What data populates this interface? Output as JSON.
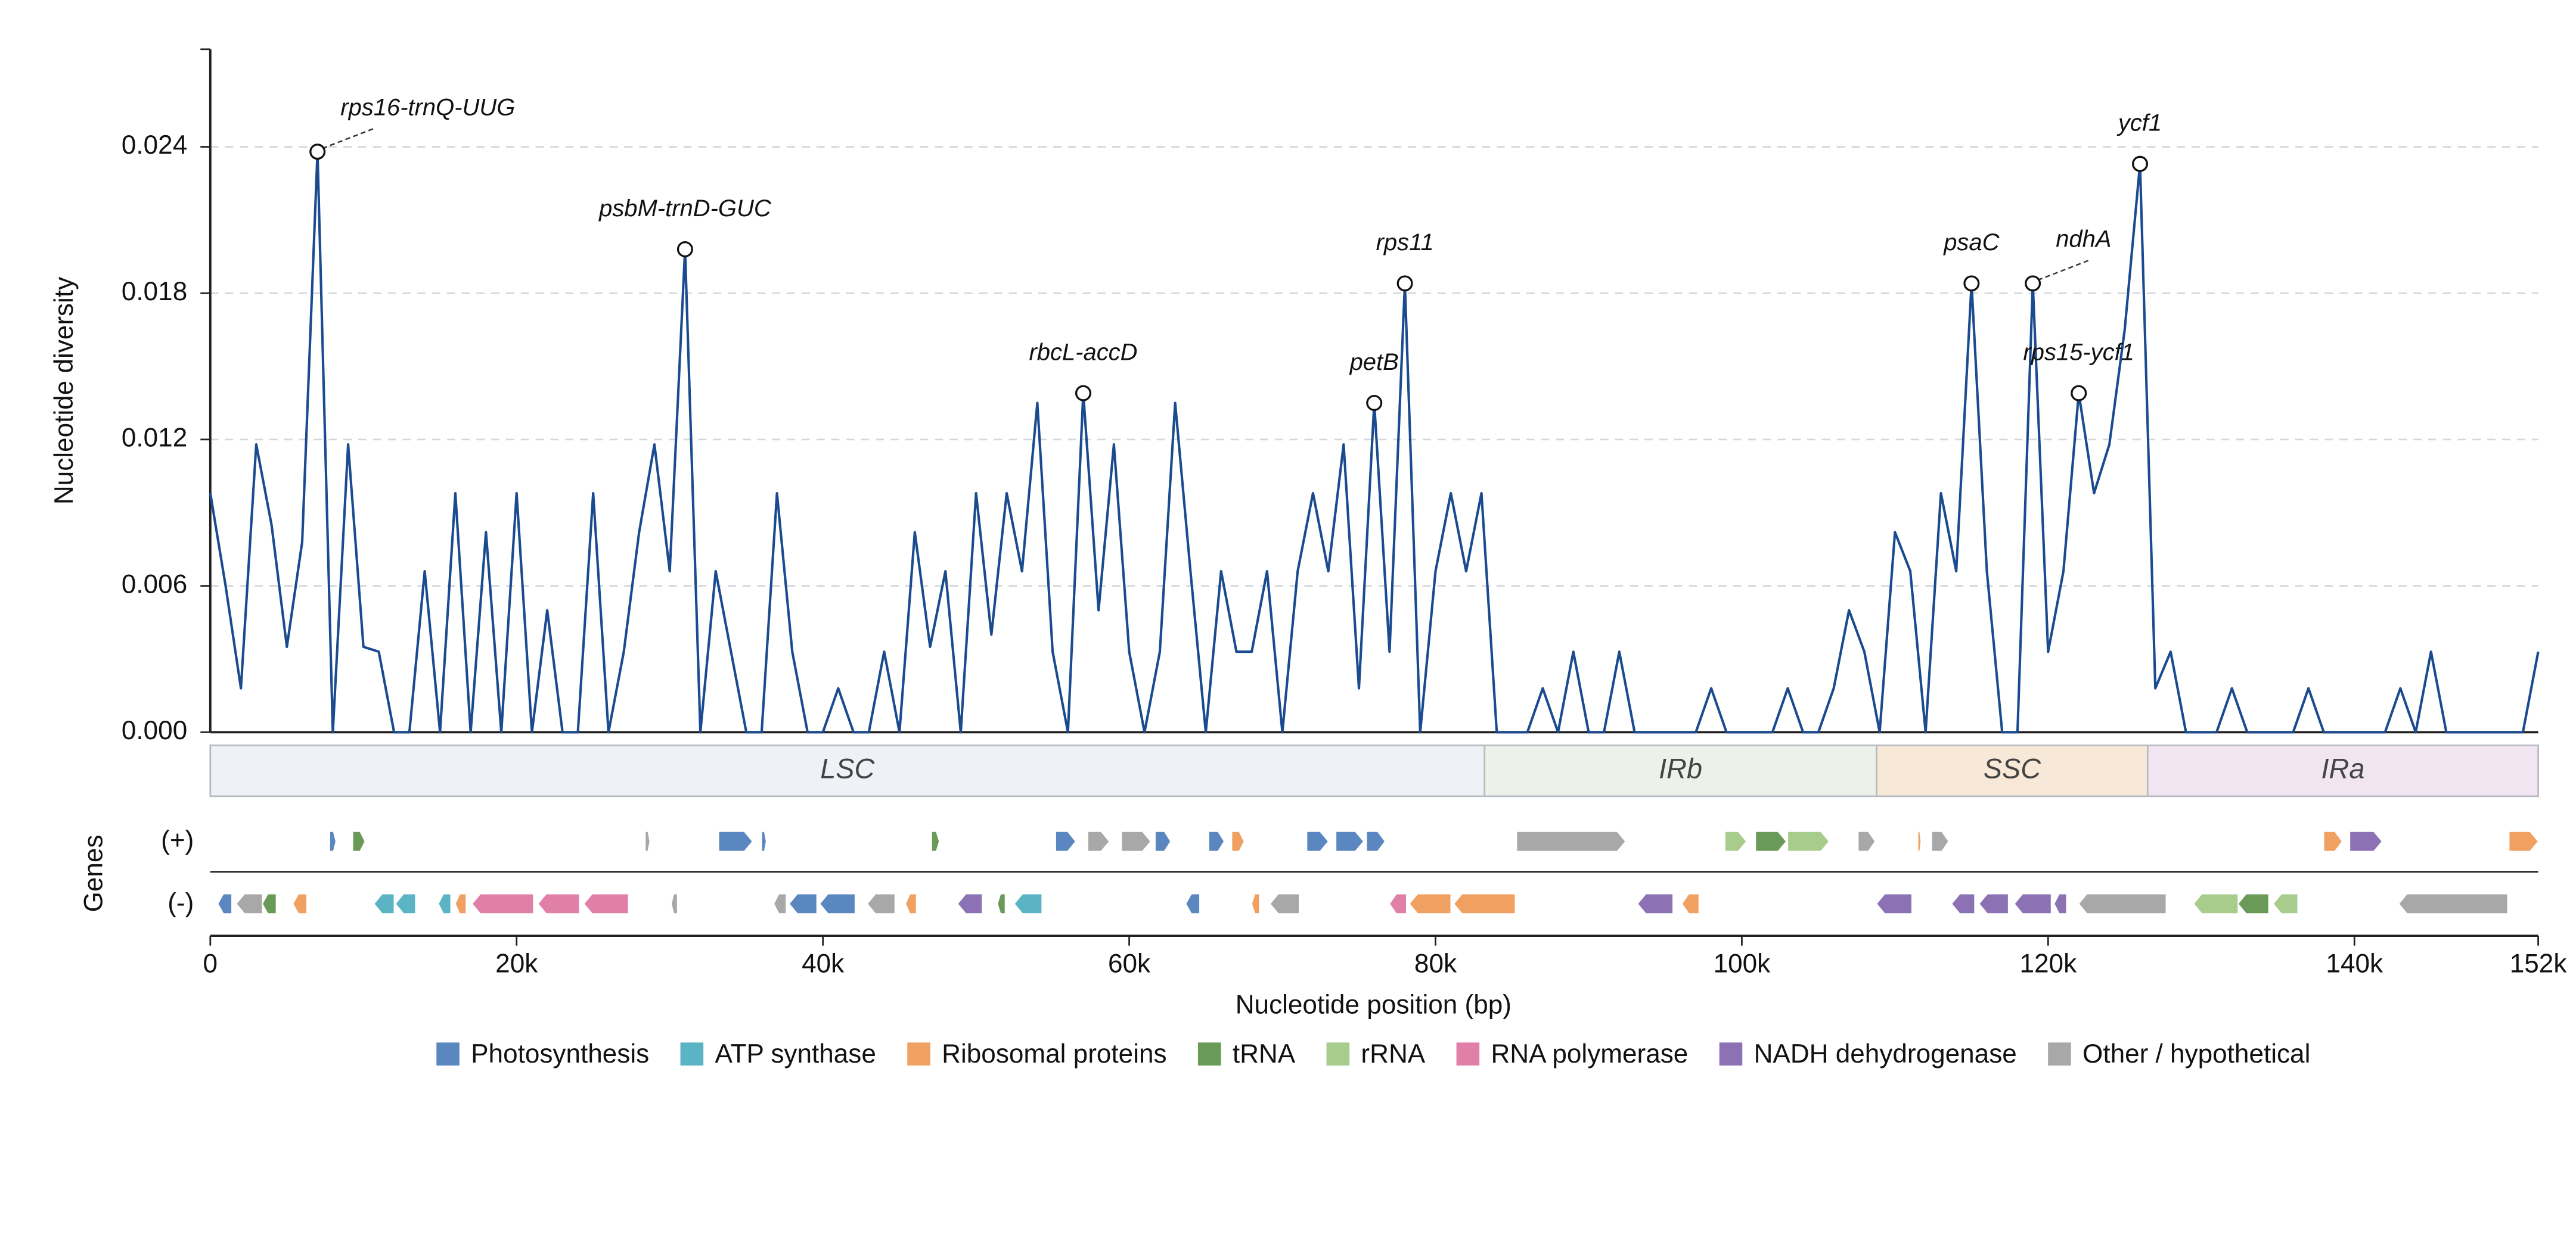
{
  "chart_data": [
    {
      "type": "line",
      "ylabel": "Nucleotide diversity",
      "color": "#1a4a8f",
      "grid": true,
      "xlim": [
        0,
        152000
      ],
      "ylim": [
        0,
        0.028
      ],
      "yticks": [
        {
          "value": 0,
          "label": "0.000"
        },
        {
          "value": 0.006,
          "label": "0.006"
        },
        {
          "value": 0.012,
          "label": "0.012"
        },
        {
          "value": 0.018,
          "label": "0.018"
        },
        {
          "value": 0.024,
          "label": "0.024"
        }
      ],
      "x": [
        0,
        1000,
        2000,
        3000,
        4000,
        5000,
        6000,
        7000,
        8000,
        9000,
        10000,
        11000,
        12000,
        13000,
        14000,
        15000,
        16000,
        17000,
        18000,
        19000,
        20000,
        21000,
        22000,
        23000,
        24000,
        25000,
        26000,
        27000,
        28000,
        29000,
        30000,
        31000,
        32000,
        33000,
        34000,
        35000,
        36000,
        37000,
        38000,
        39000,
        40000,
        41000,
        42000,
        43000,
        44000,
        45000,
        46000,
        47000,
        48000,
        49000,
        50000,
        51000,
        52000,
        53000,
        54000,
        55000,
        56000,
        57000,
        58000,
        59000,
        60000,
        61000,
        62000,
        63000,
        64000,
        65000,
        66000,
        67000,
        68000,
        69000,
        70000,
        71000,
        72000,
        73000,
        74000,
        75000,
        76000,
        77000,
        78000,
        79000,
        80000,
        81000,
        82000,
        83000,
        84000,
        85000,
        86000,
        87000,
        88000,
        89000,
        90000,
        91000,
        92000,
        93000,
        94000,
        95000,
        96000,
        97000,
        98000,
        99000,
        100000,
        101000,
        102000,
        103000,
        104000,
        105000,
        106000,
        107000,
        108000,
        109000,
        110000,
        111000,
        112000,
        113000,
        114000,
        115000,
        116000,
        117000,
        118000,
        119000,
        120000,
        121000,
        122000,
        123000,
        124000,
        125000,
        126000,
        127000,
        128000,
        129000,
        130000,
        131000,
        132000,
        133000,
        134000,
        135000,
        136000,
        137000,
        138000,
        139000,
        140000,
        141000,
        142000,
        143000,
        144000,
        145000,
        146000,
        147000,
        148000,
        149000,
        150000,
        151000,
        152000
      ],
      "values": [
        0.0098,
        0.006,
        0.0018,
        0.0118,
        0.0085,
        0.0035,
        0.0078,
        0.0238,
        0.0,
        0.0118,
        0.0035,
        0.0033,
        0.0,
        0.0,
        0.0066,
        0.0,
        0.0098,
        0.0,
        0.0082,
        0.0,
        0.0098,
        0.0,
        0.005,
        0.0,
        0.0,
        0.0098,
        0.0,
        0.0033,
        0.0082,
        0.0118,
        0.0066,
        0.0198,
        0.0,
        0.0066,
        0.0033,
        0.0,
        0.0,
        0.0098,
        0.0033,
        0.0,
        0.0,
        0.0018,
        0.0,
        0.0,
        0.0033,
        0.0,
        0.0082,
        0.0035,
        0.0066,
        0.0,
        0.0098,
        0.004,
        0.0098,
        0.0066,
        0.0135,
        0.0033,
        0.0,
        0.0139,
        0.005,
        0.0118,
        0.0033,
        0.0,
        0.0033,
        0.0135,
        0.0066,
        0.0,
        0.0066,
        0.0033,
        0.0033,
        0.0066,
        0.0,
        0.0066,
        0.0098,
        0.0066,
        0.0118,
        0.0018,
        0.0135,
        0.0033,
        0.0184,
        0.0,
        0.0066,
        0.0098,
        0.0066,
        0.0098,
        0.0,
        0.0,
        0.0,
        0.0018,
        0.0,
        0.0033,
        0.0,
        0.0,
        0.0033,
        0.0,
        0.0,
        0.0,
        0.0,
        0.0,
        0.0018,
        0.0,
        0.0,
        0.0,
        0.0,
        0.0018,
        0.0,
        0.0,
        0.0018,
        0.005,
        0.0033,
        0.0,
        0.0082,
        0.0066,
        0.0,
        0.0098,
        0.0066,
        0.0184,
        0.0066,
        0.0,
        0.0,
        0.0184,
        0.0033,
        0.0066,
        0.0139,
        0.0098,
        0.0118,
        0.0165,
        0.0233,
        0.0018,
        0.0033,
        0.0,
        0.0,
        0.0,
        0.0018,
        0.0,
        0.0,
        0.0,
        0.0,
        0.0018,
        0.0,
        0.0,
        0.0,
        0.0,
        0.0,
        0.0018,
        0.0,
        0.0033,
        0.0,
        0.0,
        0.0,
        0.0,
        0.0,
        0.0,
        0.0033
      ],
      "annotations": [
        {
          "label": "rps16-trnQ-UUG",
          "x": 7000,
          "y": 0.0238
        },
        {
          "label": "psbM-trnD-GUC",
          "x": 31000,
          "y": 0.0198
        },
        {
          "label": "rbcL-accD",
          "x": 57000,
          "y": 0.0139
        },
        {
          "label": "petB",
          "x": 76000,
          "y": 0.0135
        },
        {
          "label": "rps11",
          "x": 78000,
          "y": 0.0184
        },
        {
          "label": "psaC",
          "x": 115000,
          "y": 0.0184
        },
        {
          "label": "ndhA",
          "x": 119000,
          "y": 0.0184
        },
        {
          "label": "rps15-ycf1",
          "x": 122000,
          "y": 0.0139
        },
        {
          "label": "ycf1",
          "x": 126000,
          "y": 0.0233
        }
      ]
    },
    {
      "type": "regions",
      "regions": [
        {
          "label": "LSC",
          "start": 0,
          "end": 83200,
          "color": "#eef2f6"
        },
        {
          "label": "IRb",
          "start": 83200,
          "end": 108800,
          "color": "#ecf2ea"
        },
        {
          "label": "SSC",
          "start": 108800,
          "end": 126500,
          "color": "#f8e8d8"
        },
        {
          "label": "IRa",
          "start": 126500,
          "end": 152000,
          "color": "#f1e5f1"
        }
      ]
    },
    {
      "type": "genes",
      "ylabel": "Genes",
      "strands": [
        "(+)",
        "(-)"
      ],
      "xlabel": "Nucleotide position (bp)",
      "xlim": [
        0,
        152000
      ],
      "xticks": [
        0,
        {
          "value": 20000,
          "label": "20k"
        },
        {
          "value": 40000,
          "label": "40k"
        },
        {
          "value": 60000,
          "label": "60k"
        },
        {
          "value": 80000,
          "label": "80k"
        },
        {
          "value": 100000,
          "label": "100k"
        },
        {
          "value": 120000,
          "label": "120k"
        },
        {
          "value": 140000,
          "label": "140k"
        },
        {
          "value": 152000,
          "label": "152k"
        }
      ],
      "categories": [
        {
          "name": "Photosynthesis",
          "color": "#5b87c0"
        },
        {
          "name": "ATP synthase",
          "color": "#5bb4c4"
        },
        {
          "name": "Ribosomal proteins",
          "color": "#f0a060"
        },
        {
          "name": "tRNA",
          "color": "#6a9a58"
        },
        {
          "name": "rRNA",
          "color": "#a8cc8c"
        },
        {
          "name": "RNA polymerase",
          "color": "#e080a8"
        },
        {
          "name": "NADH dehydrogenase",
          "color": "#8c72b4"
        },
        {
          "name": "Other / hypothetical",
          "color": "#a8a8a8"
        }
      ],
      "genes": [
        {
          "start": 7800,
          "end": 8200,
          "strand": "+",
          "category": "Photosynthesis"
        },
        {
          "start": 9300,
          "end": 10100,
          "strand": "+",
          "category": "tRNA"
        },
        {
          "start": 28400,
          "end": 28700,
          "strand": "+",
          "category": "Other / hypothetical"
        },
        {
          "start": 33200,
          "end": 35400,
          "strand": "+",
          "category": "Photosynthesis"
        },
        {
          "start": 36000,
          "end": 36300,
          "strand": "+",
          "category": "Photosynthesis"
        },
        {
          "start": 47100,
          "end": 47600,
          "strand": "+",
          "category": "tRNA"
        },
        {
          "start": 55200,
          "end": 56500,
          "strand": "+",
          "category": "Photosynthesis"
        },
        {
          "start": 57300,
          "end": 58700,
          "strand": "+",
          "category": "Other / hypothetical"
        },
        {
          "start": 59500,
          "end": 61400,
          "strand": "+",
          "category": "Other / hypothetical"
        },
        {
          "start": 61700,
          "end": 62700,
          "strand": "+",
          "category": "Photosynthesis"
        },
        {
          "start": 65200,
          "end": 66200,
          "strand": "+",
          "category": "Photosynthesis"
        },
        {
          "start": 66700,
          "end": 67500,
          "strand": "+",
          "category": "Ribosomal proteins"
        },
        {
          "start": 71600,
          "end": 73000,
          "strand": "+",
          "category": "Photosynthesis"
        },
        {
          "start": 73500,
          "end": 75300,
          "strand": "+",
          "category": "Photosynthesis"
        },
        {
          "start": 75500,
          "end": 76700,
          "strand": "+",
          "category": "Photosynthesis"
        },
        {
          "start": 85300,
          "end": 92400,
          "strand": "+",
          "category": "Other / hypothetical"
        },
        {
          "start": 98900,
          "end": 100300,
          "strand": "+",
          "category": "rRNA"
        },
        {
          "start": 100900,
          "end": 102900,
          "strand": "+",
          "category": "tRNA"
        },
        {
          "start": 103000,
          "end": 105700,
          "strand": "+",
          "category": "rRNA"
        },
        {
          "start": 107600,
          "end": 108700,
          "strand": "+",
          "category": "Other / hypothetical"
        },
        {
          "start": 111500,
          "end": 111700,
          "strand": "+",
          "category": "Ribosomal proteins"
        },
        {
          "start": 112400,
          "end": 113500,
          "strand": "+",
          "category": "Other / hypothetical"
        },
        {
          "start": 138000,
          "end": 139200,
          "strand": "+",
          "category": "Ribosomal proteins"
        },
        {
          "start": 139700,
          "end": 141800,
          "strand": "+",
          "category": "NADH dehydrogenase"
        },
        {
          "start": 150100,
          "end": 152000,
          "strand": "+",
          "category": "Ribosomal proteins"
        },
        {
          "start": 500,
          "end": 1400,
          "strand": "-",
          "category": "Photosynthesis"
        },
        {
          "start": 1700,
          "end": 3400,
          "strand": "-",
          "category": "Other / hypothetical"
        },
        {
          "start": 3400,
          "end": 4300,
          "strand": "-",
          "category": "tRNA"
        },
        {
          "start": 5400,
          "end": 6300,
          "strand": "-",
          "category": "Ribosomal proteins"
        },
        {
          "start": 10700,
          "end": 12000,
          "strand": "-",
          "category": "ATP synthase"
        },
        {
          "start": 12100,
          "end": 13400,
          "strand": "-",
          "category": "ATP synthase"
        },
        {
          "start": 14900,
          "end": 15700,
          "strand": "-",
          "category": "ATP synthase"
        },
        {
          "start": 16000,
          "end": 16700,
          "strand": "-",
          "category": "Ribosomal proteins"
        },
        {
          "start": 17100,
          "end": 21100,
          "strand": "-",
          "category": "RNA polymerase"
        },
        {
          "start": 21400,
          "end": 24100,
          "strand": "-",
          "category": "RNA polymerase"
        },
        {
          "start": 24400,
          "end": 27300,
          "strand": "-",
          "category": "RNA polymerase"
        },
        {
          "start": 30100,
          "end": 30500,
          "strand": "-",
          "category": "Other / hypothetical"
        },
        {
          "start": 36800,
          "end": 37600,
          "strand": "-",
          "category": "Other / hypothetical"
        },
        {
          "start": 37800,
          "end": 39600,
          "strand": "-",
          "category": "Photosynthesis"
        },
        {
          "start": 39800,
          "end": 42100,
          "strand": "-",
          "category": "Photosynthesis"
        },
        {
          "start": 42900,
          "end": 44700,
          "strand": "-",
          "category": "Other / hypothetical"
        },
        {
          "start": 45400,
          "end": 46100,
          "strand": "-",
          "category": "Ribosomal proteins"
        },
        {
          "start": 48800,
          "end": 50400,
          "strand": "-",
          "category": "NADH dehydrogenase"
        },
        {
          "start": 51400,
          "end": 51900,
          "strand": "-",
          "category": "tRNA"
        },
        {
          "start": 52500,
          "end": 54300,
          "strand": "-",
          "category": "ATP synthase"
        },
        {
          "start": 63700,
          "end": 64600,
          "strand": "-",
          "category": "Photosynthesis"
        },
        {
          "start": 68000,
          "end": 68500,
          "strand": "-",
          "category": "Ribosomal proteins"
        },
        {
          "start": 69200,
          "end": 71100,
          "strand": "-",
          "category": "Other / hypothetical"
        },
        {
          "start": 77000,
          "end": 78100,
          "strand": "-",
          "category": "RNA polymerase"
        },
        {
          "start": 78300,
          "end": 81000,
          "strand": "-",
          "category": "Ribosomal proteins"
        },
        {
          "start": 81200,
          "end": 85200,
          "strand": "-",
          "category": "Ribosomal proteins"
        },
        {
          "start": 93200,
          "end": 95500,
          "strand": "-",
          "category": "NADH dehydrogenase"
        },
        {
          "start": 96100,
          "end": 97200,
          "strand": "-",
          "category": "Ribosomal proteins"
        },
        {
          "start": 108800,
          "end": 111100,
          "strand": "-",
          "category": "NADH dehydrogenase"
        },
        {
          "start": 113700,
          "end": 115200,
          "strand": "-",
          "category": "NADH dehydrogenase"
        },
        {
          "start": 115500,
          "end": 117400,
          "strand": "-",
          "category": "NADH dehydrogenase"
        },
        {
          "start": 117800,
          "end": 120200,
          "strand": "-",
          "category": "NADH dehydrogenase"
        },
        {
          "start": 120400,
          "end": 121200,
          "strand": "-",
          "category": "NADH dehydrogenase"
        },
        {
          "start": 122000,
          "end": 127700,
          "strand": "-",
          "category": "Other / hypothetical"
        },
        {
          "start": 129500,
          "end": 132400,
          "strand": "-",
          "category": "rRNA"
        },
        {
          "start": 132400,
          "end": 134400,
          "strand": "-",
          "category": "tRNA"
        },
        {
          "start": 134700,
          "end": 136300,
          "strand": "-",
          "category": "rRNA"
        },
        {
          "start": 142900,
          "end": 150000,
          "strand": "-",
          "category": "Other / hypothetical"
        }
      ]
    }
  ]
}
